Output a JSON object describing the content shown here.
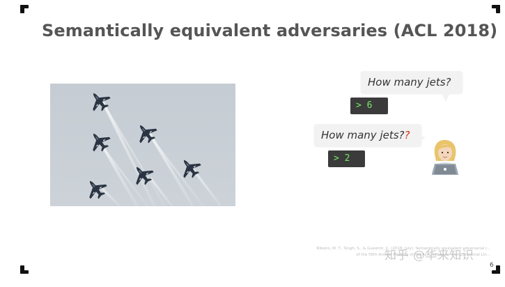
{
  "slide": {
    "title": "Semantically equivalent adversaries  (ACL 2018)",
    "page_number": "6"
  },
  "image": {
    "subject": "jets flying in formation with smoke trails",
    "jet_count": 6
  },
  "dialogue": {
    "question_original": "How many jets?",
    "answer_original": "> 6",
    "question_adversarial_prefix": "How many jets?",
    "question_adversarial_added": "?",
    "answer_adversarial": "> 2"
  },
  "citation": {
    "line1": "Ribeiro, M. T., Singh, S., & Guestrin, C. (2018, July). Semantically equivalent adversarial r...",
    "line2": "of the 56th Annual Meeting of the Association for Computational Lin..."
  },
  "watermark": {
    "text": "知乎 @华来知识"
  },
  "icons": {
    "user": "person-with-laptop-icon"
  },
  "colors": {
    "title": "#555555",
    "bubble_bg": "#f2f2f2",
    "terminal_bg": "#3b3b3b",
    "terminal_text": "#7be86a",
    "added_mark": "#d0321c"
  }
}
